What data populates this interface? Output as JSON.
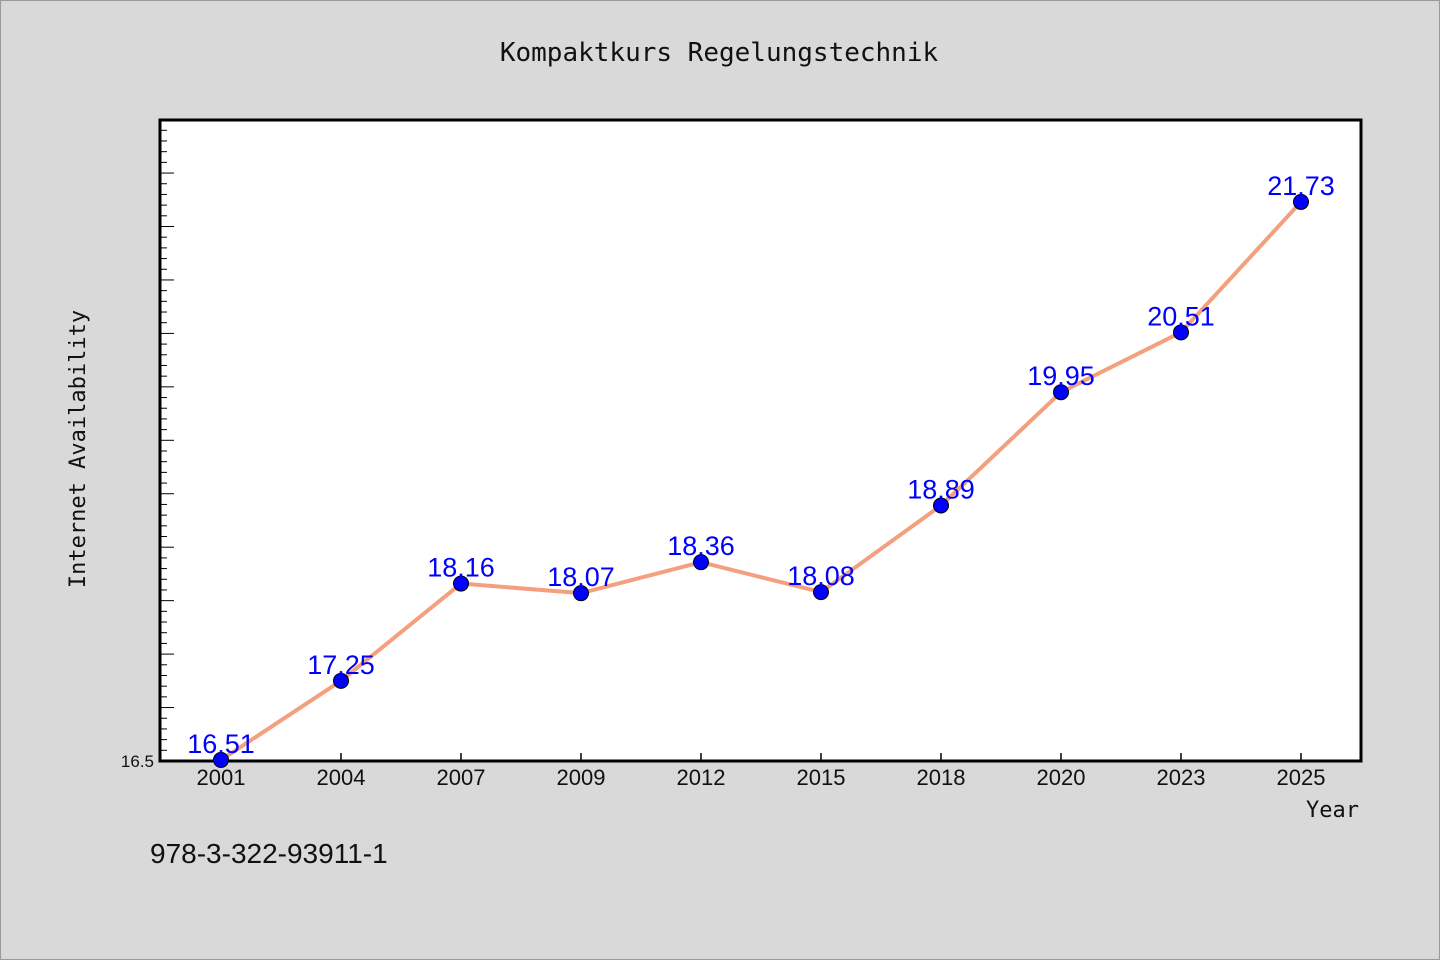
{
  "chart_data": {
    "type": "line",
    "title": "Kompaktkurs Regelungstechnik",
    "xlabel": "Year",
    "ylabel": "Internet Availability",
    "categories": [
      "2001",
      "2004",
      "2007",
      "2009",
      "2012",
      "2015",
      "2018",
      "2020",
      "2023",
      "2025"
    ],
    "series": [
      {
        "values": [
          16.51,
          17.25,
          18.16,
          18.07,
          18.36,
          18.08,
          18.89,
          19.95,
          20.51,
          21.73
        ],
        "labels": [
          "16.51",
          "17.25",
          "18.16",
          "18.07",
          "18.36",
          "18.08",
          "18.89",
          "19.95",
          "20.51",
          "21.73"
        ]
      }
    ],
    "ylim": [
      16.5,
      22.5
    ],
    "y_tick_labels": [
      "16.5"
    ],
    "grid": false,
    "line_color": "#f4a07e",
    "marker_color": "#0000ff",
    "label_color": "#0000ff",
    "background_color": "#d9d9d9",
    "plot_background_color": "#ffffff"
  },
  "footer": {
    "isbn": "978-3-322-93911-1"
  }
}
